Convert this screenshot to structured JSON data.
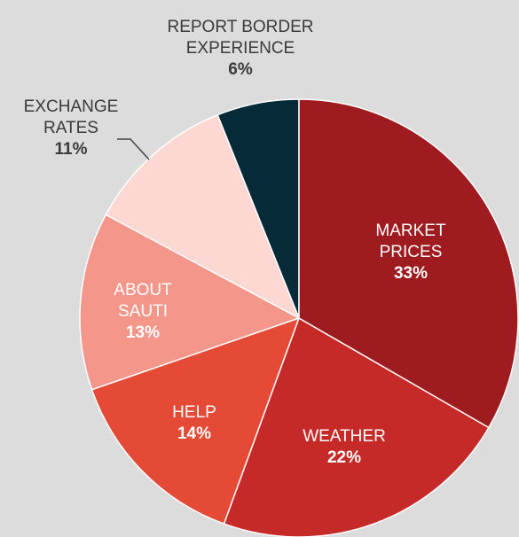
{
  "chart_data": {
    "type": "pie",
    "categories": [
      "MARKET PRICES",
      "WEATHER",
      "HELP",
      "ABOUT SAUTI",
      "EXCHANGE RATES",
      "REPORT BORDER EXPERIENCE"
    ],
    "values": [
      33,
      22,
      14,
      13,
      11,
      6
    ],
    "value_labels": [
      "33%",
      "22%",
      "14%",
      "13%",
      "11%",
      "6%"
    ],
    "colors": [
      "#9e1b20",
      "#c62a28",
      "#e44a35",
      "#f4968a",
      "#fdd8d3",
      "#062a38"
    ]
  }
}
